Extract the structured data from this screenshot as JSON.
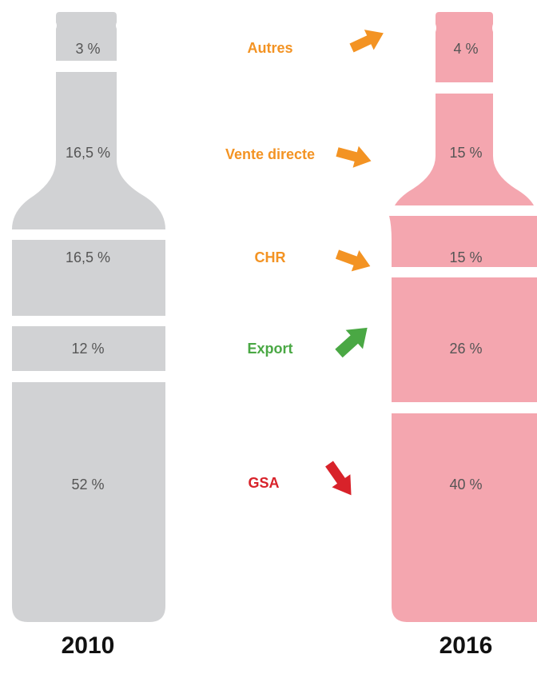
{
  "bottles": [
    {
      "year": "2010",
      "segments": [
        "3 %",
        "16,5 %",
        "16,5 %",
        "12 %",
        "52 %"
      ]
    },
    {
      "year": "2016",
      "segments": [
        "4 %",
        "15 %",
        "15 %",
        "26 %",
        "40 %"
      ]
    }
  ],
  "channels": [
    "Autres",
    "Vente directe",
    "CHR",
    "Export",
    "GSA"
  ]
}
